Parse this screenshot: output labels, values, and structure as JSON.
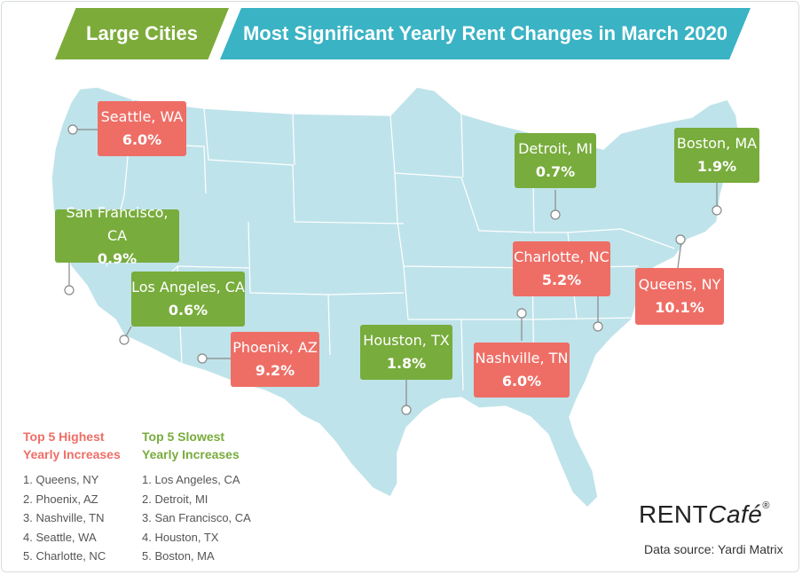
{
  "header": {
    "tab_label": "Large Cities",
    "title": "Most Significant Yearly Rent Changes in March 2020"
  },
  "colors": {
    "increase": "#ee6e66",
    "slow": "#78ac3c",
    "map_fill": "#bfe3ea",
    "title_bar": "#3ab3c4"
  },
  "cities": [
    {
      "name": "Seattle, WA",
      "value": "6.0%",
      "kind": "increase"
    },
    {
      "name": "San Francisco, CA",
      "value": "0.9%",
      "kind": "slow"
    },
    {
      "name": "Los Angeles, CA",
      "value": "0.6%",
      "kind": "slow"
    },
    {
      "name": "Phoenix, AZ",
      "value": "9.2%",
      "kind": "increase"
    },
    {
      "name": "Houston, TX",
      "value": "1.8%",
      "kind": "slow"
    },
    {
      "name": "Detroit, MI",
      "value": "0.7%",
      "kind": "slow"
    },
    {
      "name": "Boston, MA",
      "value": "1.9%",
      "kind": "slow"
    },
    {
      "name": "Charlotte, NC",
      "value": "5.2%",
      "kind": "increase"
    },
    {
      "name": "Queens, NY",
      "value": "10.1%",
      "kind": "increase"
    },
    {
      "name": "Nashville, TN",
      "value": "6.0%",
      "kind": "increase"
    }
  ],
  "highest": {
    "title_line1": "Top 5 Highest",
    "title_line2": "Yearly Increases",
    "items": [
      "1. Queens, NY",
      "2. Phoenix, AZ",
      "3. Nashville, TN",
      "4. Seattle, WA",
      "5. Charlotte, NC"
    ]
  },
  "slowest": {
    "title_line1": "Top 5 Slowest",
    "title_line2": "Yearly Increases",
    "items": [
      "1. Los Angeles, CA",
      "2. Detroit, MI",
      "3. San Francisco, CA",
      "4. Houston, TX",
      "5. Boston, MA"
    ]
  },
  "logo": {
    "part1": "RENT",
    "part2": "Café",
    "reg": "®"
  },
  "source": "Data source:  Yardi Matrix"
}
